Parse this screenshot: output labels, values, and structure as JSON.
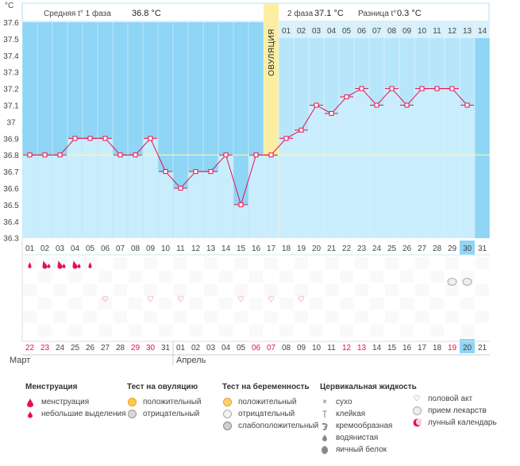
{
  "chart_data": {
    "type": "line",
    "yaxis_unit": "°C",
    "ylim": [
      36.3,
      37.6
    ],
    "yticks": [
      "37.6",
      "37.5",
      "37.4",
      "37.3",
      "37.2",
      "37.1",
      "37",
      "36.9",
      "36.8",
      "36.7",
      "36.6",
      "36.5",
      "36.4",
      "36.3"
    ],
    "coverline": 36.8,
    "days": [
      "01",
      "02",
      "03",
      "04",
      "05",
      "06",
      "07",
      "08",
      "09",
      "10",
      "11",
      "12",
      "13",
      "14",
      "15",
      "16",
      "17",
      "18",
      "19",
      "20",
      "21",
      "22",
      "23",
      "24",
      "25",
      "26",
      "27",
      "28",
      "29",
      "30",
      "31"
    ],
    "temperatures": [
      36.8,
      36.8,
      36.8,
      36.9,
      36.9,
      36.9,
      36.8,
      36.8,
      36.9,
      36.7,
      36.6,
      36.7,
      36.7,
      36.8,
      36.5,
      36.8,
      36.8,
      36.9,
      36.95,
      37.1,
      37.05,
      37.15,
      37.2,
      37.1,
      37.2,
      37.1,
      37.2,
      37.2,
      37.2,
      37.1,
      null
    ],
    "phase1_summary": "Средняя t° 1 фаза",
    "phase1_value": "36.8 °C",
    "phase2_summary": "2 фаза",
    "phase2_value": "37.1 °C",
    "diff_summary": "Разница t°",
    "diff_value": "0.3 °C",
    "ovulation_label": "ОВУЛЯЦИЯ",
    "ovulation_day_index": 16,
    "phase2_day_numbers": [
      "01",
      "02",
      "03",
      "04",
      "05",
      "06",
      "07",
      "08",
      "09",
      "10",
      "11",
      "12",
      "13",
      "14"
    ],
    "today_index": 29,
    "calendar_dates": [
      "22",
      "23",
      "24",
      "25",
      "26",
      "27",
      "28",
      "29",
      "30",
      "31",
      "01",
      "02",
      "03",
      "04",
      "05",
      "06",
      "07",
      "08",
      "09",
      "10",
      "11",
      "12",
      "13",
      "14",
      "15",
      "16",
      "17",
      "18",
      "19",
      "20",
      "21"
    ],
    "calendar_dates_red": [
      0,
      1,
      7,
      8,
      15,
      16,
      21,
      22,
      28
    ],
    "month_march": "Март",
    "month_april": "Апрель",
    "menstruation_days": [
      0,
      1,
      2,
      3,
      4
    ],
    "menstruation_heavy": [
      1,
      2,
      3
    ],
    "medicine_days": [
      28,
      29
    ],
    "sex_days": [
      5,
      8,
      10,
      14,
      16,
      18
    ]
  },
  "legend": {
    "menstruation": {
      "title": "Менструация",
      "items": [
        "менструация",
        "небольшие выделения"
      ]
    },
    "ovulation_test": {
      "title": "Тест на овуляцию",
      "items": [
        "положительный",
        "отрицательный"
      ]
    },
    "pregnancy_test": {
      "title": "Тест на беременность",
      "items": [
        "положительный",
        "отрицательный",
        "слабоположительный"
      ]
    },
    "cervical": {
      "title": "Цервикальная жидкость",
      "items": [
        "сухо",
        "клейкая",
        "кремообразная",
        "водянистая",
        "яичный белок"
      ]
    },
    "other": {
      "items": [
        "половой акт",
        "прием лекарств",
        "лунный календарь"
      ]
    }
  },
  "colors": {
    "phase1_bg": "#8fd5f5",
    "phase2_bg": "#b7e6fb",
    "bar_fill": "#c9edfc",
    "ovulation": "#fbeea3",
    "line": "#e3124e",
    "red": "#e3124e",
    "today": "#8fd5f5"
  }
}
